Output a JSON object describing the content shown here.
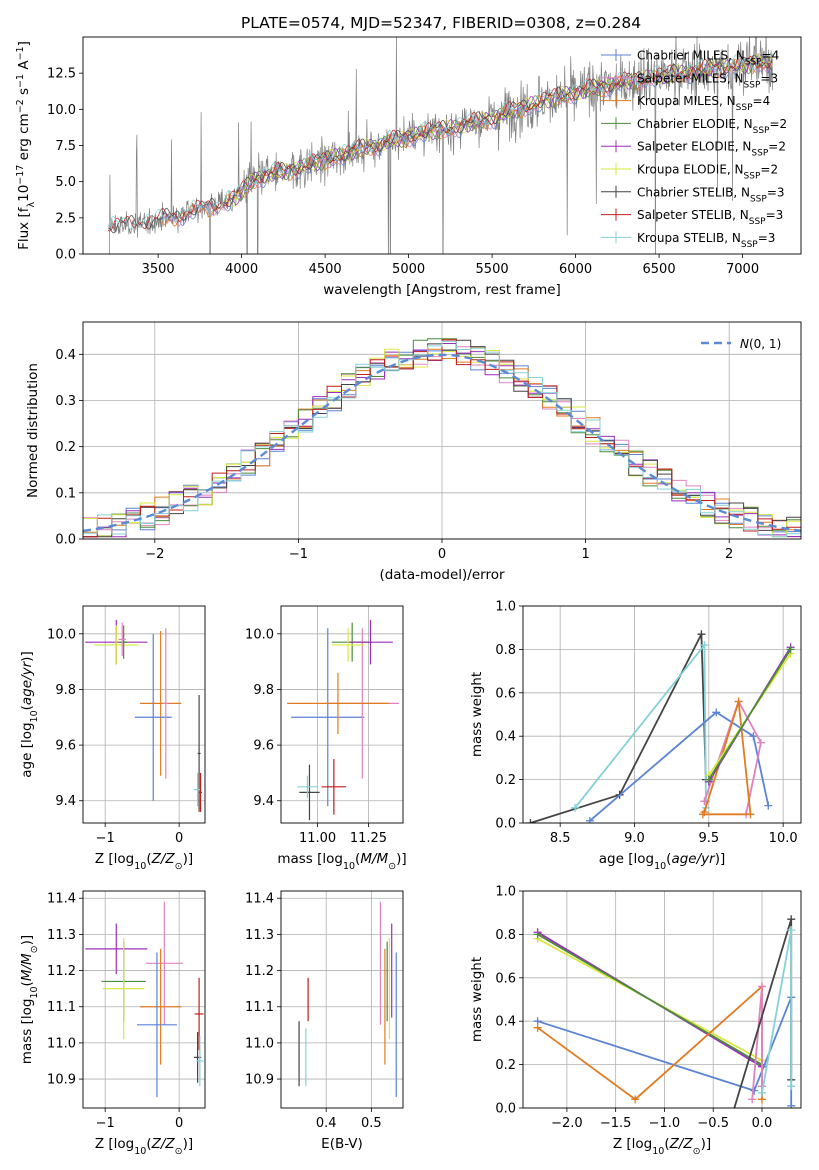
{
  "figure": {
    "title": "PLATE=0574, MJD=52347, FIBERID=0308, z=0.284"
  },
  "colors": {
    "chabrier_miles": "#5b83d6",
    "salpeter_miles": "#e082c0",
    "kroupa_miles": "#e07b20",
    "chabrier_elodie": "#4b8c3c",
    "salpeter_elodie": "#9b2fbd",
    "kroupa_elodie": "#d9e840",
    "chabrier_stelib": "#444444",
    "salpeter_stelib": "#c01c1c",
    "kroupa_stelib": "#84d2d8",
    "data": "#808080"
  },
  "chart_data": [
    {
      "id": "spectrum",
      "type": "line",
      "title": "PLATE=0574, MJD=52347, FIBERID=0308, z=0.284",
      "xlabel": "wavelength [Angstrom, rest frame]",
      "ylabel": "Flux [f_λ 10^-17 erg cm^-2 s^-1 A^-1]",
      "xlim": [
        3050,
        7350
      ],
      "ylim": [
        0,
        15
      ],
      "xticks": [
        3500,
        4000,
        4500,
        5000,
        5500,
        6000,
        6500,
        7000
      ],
      "yticks": [
        0.0,
        2.5,
        5.0,
        7.5,
        10.0,
        12.5
      ],
      "legend_position": "upper right",
      "legend": [
        {
          "label": "Chabrier MILES, N",
          "sub": "SSP",
          "tail": "=4",
          "color_key": "chabrier_miles"
        },
        {
          "label": "Salpeter MILES, N",
          "sub": "SSP",
          "tail": "=3",
          "color_key": "salpeter_miles"
        },
        {
          "label": "Kroupa MILES, N",
          "sub": "SSP",
          "tail": "=4",
          "color_key": "kroupa_miles"
        },
        {
          "label": "Chabrier ELODIE, N",
          "sub": "SSP",
          "tail": "=2",
          "color_key": "chabrier_elodie"
        },
        {
          "label": "Salpeter ELODIE, N",
          "sub": "SSP",
          "tail": "=2",
          "color_key": "salpeter_elodie"
        },
        {
          "label": "Kroupa ELODIE, N",
          "sub": "SSP",
          "tail": "=2",
          "color_key": "kroupa_elodie"
        },
        {
          "label": "Chabrier STELIB, N",
          "sub": "SSP",
          "tail": "=3",
          "color_key": "chabrier_stelib"
        },
        {
          "label": "Salpeter STELIB, N",
          "sub": "SSP",
          "tail": "=3",
          "color_key": "salpeter_stelib"
        },
        {
          "label": "Kroupa STELIB, N",
          "sub": "SSP",
          "tail": "=3",
          "color_key": "kroupa_stelib"
        }
      ],
      "model_anchor": {
        "x": [
          3200,
          3400,
          3600,
          3800,
          3950,
          4100,
          4300,
          4500,
          4700,
          4900,
          5100,
          5300,
          5500,
          5700,
          5900,
          6100,
          6300,
          6500,
          6700,
          6900,
          7100
        ],
        "y": [
          1.8,
          2.1,
          2.6,
          3.2,
          3.8,
          5.3,
          5.8,
          6.5,
          7.2,
          7.8,
          8.4,
          8.8,
          9.4,
          10.2,
          10.9,
          11.4,
          11.9,
          12.3,
          12.6,
          12.9,
          13.2
        ]
      }
    },
    {
      "id": "residuals",
      "type": "step",
      "xlabel": "(data-model)/error",
      "ylabel": "Normed distribution",
      "xlim": [
        -2.5,
        2.5
      ],
      "ylim": [
        0,
        0.47
      ],
      "xticks": [
        -2,
        -1,
        0,
        1,
        2
      ],
      "yticks": [
        0.0,
        0.1,
        0.2,
        0.3,
        0.4
      ],
      "grid": true,
      "legend": [
        {
          "label": "N(0,1)",
          "style": "dashed",
          "color": "#5b8bd6"
        }
      ],
      "legend_position": "upper right",
      "bins": {
        "start": -2.5,
        "width": 0.1,
        "count": 50
      }
    },
    {
      "id": "age_vs_Z",
      "type": "errorbar",
      "xlabel": "Z [log10(Z/Z⊙)]",
      "ylabel": "age [log10(age/yr)]",
      "xlim": [
        -1.3,
        0.35
      ],
      "ylim": [
        9.32,
        10.1
      ],
      "xticks": [
        -1,
        0
      ],
      "yticks": [
        9.4,
        9.6,
        9.8,
        10.0
      ],
      "grid": true,
      "points": [
        {
          "key": "salpeter_elodie",
          "x": -0.85,
          "xerr": 0.42,
          "y": 9.97,
          "yerr": 0.08
        },
        {
          "key": "kroupa_elodie",
          "x": -0.85,
          "xerr": 0.3,
          "y": 9.96,
          "yerr": 0.07
        },
        {
          "key": "chabrier_elodie",
          "x": -0.75,
          "xerr": 0.05,
          "y": 9.97,
          "yerr": 0.06
        },
        {
          "key": "salpeter_miles",
          "x": -0.77,
          "xerr": 0.05,
          "y": 9.98,
          "yerr": 0.06
        },
        {
          "key": "kroupa_miles",
          "x": -0.25,
          "xerr": 0.28,
          "y": 9.75,
          "yerr": 0.26
        },
        {
          "key": "chabrier_miles",
          "x": -0.35,
          "xerr": 0.25,
          "y": 9.7,
          "yerr": 0.3
        },
        {
          "key": "salpeter_miles",
          "x": -0.18,
          "xerr": 0.04,
          "y": 9.75,
          "yerr": 0.27
        },
        {
          "key": "chabrier_stelib",
          "x": 0.27,
          "xerr": 0.02,
          "y": 9.57,
          "yerr": 0.21
        },
        {
          "key": "kroupa_stelib",
          "x": 0.25,
          "xerr": 0.05,
          "y": 9.44,
          "yerr": 0.06
        },
        {
          "key": "salpeter_stelib",
          "x": 0.29,
          "xerr": 0.02,
          "y": 9.43,
          "yerr": 0.07
        }
      ]
    },
    {
      "id": "age_vs_mass",
      "type": "errorbar",
      "xlabel": "mass [log10(M/M⊙)]",
      "ylabel": "",
      "xlim": [
        10.82,
        11.42
      ],
      "ylim": [
        9.32,
        10.1
      ],
      "xticks": [
        11.0,
        11.25
      ],
      "yticks": [
        9.4,
        9.6,
        9.8,
        10.0
      ],
      "grid": true,
      "points": [
        {
          "key": "chabrier_miles",
          "x": 11.05,
          "xerr": 0.18,
          "y": 9.7,
          "yerr": 0.32
        },
        {
          "key": "salpeter_miles",
          "x": 11.22,
          "xerr": 0.18,
          "y": 9.75,
          "yerr": 0.27
        },
        {
          "key": "kroupa_miles",
          "x": 11.1,
          "xerr": 0.25,
          "y": 9.75,
          "yerr": 0.11
        },
        {
          "key": "chabrier_elodie",
          "x": 11.17,
          "xerr": 0.1,
          "y": 9.97,
          "yerr": 0.07
        },
        {
          "key": "salpeter_elodie",
          "x": 11.26,
          "xerr": 0.11,
          "y": 9.97,
          "yerr": 0.08
        },
        {
          "key": "kroupa_elodie",
          "x": 11.15,
          "xerr": 0.08,
          "y": 9.96,
          "yerr": 0.06
        },
        {
          "key": "chabrier_stelib",
          "x": 10.96,
          "xerr": 0.05,
          "y": 9.43,
          "yerr": 0.1
        },
        {
          "key": "salpeter_stelib",
          "x": 11.08,
          "xerr": 0.06,
          "y": 9.45,
          "yerr": 0.1
        },
        {
          "key": "kroupa_stelib",
          "x": 10.95,
          "xerr": 0.05,
          "y": 9.45,
          "yerr": 0.04
        }
      ]
    },
    {
      "id": "massweight_vs_age",
      "type": "line",
      "xlabel": "age [log10(age/yr)]",
      "ylabel": "mass weight",
      "xlim": [
        8.25,
        10.12
      ],
      "ylim": [
        0.0,
        1.0
      ],
      "xticks": [
        8.5,
        9.0,
        9.5,
        10.0
      ],
      "yticks": [
        0.0,
        0.2,
        0.4,
        0.6,
        0.8,
        1.0
      ],
      "grid": true,
      "series": [
        {
          "key": "chabrier_stelib",
          "x": [
            8.3,
            8.9,
            9.45,
            9.48
          ],
          "y": [
            0.0,
            0.13,
            0.87,
            0.2
          ]
        },
        {
          "key": "kroupa_stelib",
          "x": [
            8.6,
            9.47,
            9.48,
            9.48
          ],
          "y": [
            0.07,
            0.82,
            0.1,
            0.07
          ]
        },
        {
          "key": "chabrier_miles",
          "x": [
            8.7,
            9.55,
            9.8,
            9.9
          ],
          "y": [
            0.01,
            0.51,
            0.4,
            0.08
          ]
        },
        {
          "key": "salpeter_miles",
          "x": [
            9.47,
            9.7,
            9.85,
            9.75
          ],
          "y": [
            0.1,
            0.56,
            0.37,
            0.04
          ]
        },
        {
          "key": "kroupa_miles",
          "x": [
            9.47,
            9.7,
            9.78,
            9.46
          ],
          "y": [
            0.05,
            0.56,
            0.04,
            0.04
          ]
        },
        {
          "key": "salpeter_elodie",
          "x": [
            9.5,
            10.05
          ],
          "y": [
            0.19,
            0.81
          ]
        },
        {
          "key": "kroupa_elodie",
          "x": [
            9.5,
            10.05
          ],
          "y": [
            0.22,
            0.78
          ]
        },
        {
          "key": "chabrier_elodie",
          "x": [
            9.5,
            10.05
          ],
          "y": [
            0.2,
            0.8
          ]
        }
      ]
    },
    {
      "id": "mass_vs_Z",
      "type": "errorbar",
      "xlabel": "Z [log10(Z/Z⊙)]",
      "ylabel": "mass [log10(M/M⊙)]",
      "xlim": [
        -1.3,
        0.35
      ],
      "ylim": [
        10.82,
        11.42
      ],
      "xticks": [
        -1,
        0
      ],
      "yticks": [
        10.9,
        11.0,
        11.1,
        11.2,
        11.3,
        11.4
      ],
      "grid": true,
      "points": [
        {
          "key": "salpeter_elodie",
          "x": -0.85,
          "xerr": 0.42,
          "y": 11.26,
          "yerr": 0.07
        },
        {
          "key": "chabrier_elodie",
          "x": -0.75,
          "xerr": 0.3,
          "y": 11.17,
          "yerr": 0.11
        },
        {
          "key": "kroupa_elodie",
          "x": -0.75,
          "xerr": 0.28,
          "y": 11.15,
          "yerr": 0.14
        },
        {
          "key": "salpeter_miles",
          "x": -0.2,
          "xerr": 0.25,
          "y": 11.22,
          "yerr": 0.17
        },
        {
          "key": "kroupa_miles",
          "x": -0.25,
          "xerr": 0.28,
          "y": 11.1,
          "yerr": 0.16
        },
        {
          "key": "chabrier_miles",
          "x": -0.3,
          "xerr": 0.27,
          "y": 11.05,
          "yerr": 0.2
        },
        {
          "key": "salpeter_stelib",
          "x": 0.27,
          "xerr": 0.06,
          "y": 11.08,
          "yerr": 0.1
        },
        {
          "key": "chabrier_stelib",
          "x": 0.25,
          "xerr": 0.05,
          "y": 10.96,
          "yerr": 0.07
        },
        {
          "key": "kroupa_stelib",
          "x": 0.28,
          "xerr": 0.05,
          "y": 10.95,
          "yerr": 0.07
        }
      ]
    },
    {
      "id": "mass_vs_ebv",
      "type": "errorbar",
      "xlabel": "E(B-V)",
      "ylabel": "",
      "xlim": [
        0.3,
        0.57
      ],
      "ylim": [
        10.82,
        11.42
      ],
      "xticks": [
        0.4,
        0.5
      ],
      "yticks": [
        10.9,
        11.0,
        11.1,
        11.2,
        11.3,
        11.4
      ],
      "grid": true,
      "points": [
        {
          "key": "chabrier_stelib",
          "x": 0.34,
          "xerr": 0.0,
          "y": 10.97,
          "yerr": 0.09
        },
        {
          "key": "kroupa_stelib",
          "x": 0.355,
          "xerr": 0.0,
          "y": 10.96,
          "yerr": 0.08
        },
        {
          "key": "salpeter_stelib",
          "x": 0.36,
          "xerr": 0.0,
          "y": 11.12,
          "yerr": 0.06
        },
        {
          "key": "salpeter_miles",
          "x": 0.52,
          "xerr": 0.0,
          "y": 11.22,
          "yerr": 0.17
        },
        {
          "key": "kroupa_miles",
          "x": 0.53,
          "xerr": 0.0,
          "y": 11.1,
          "yerr": 0.16
        },
        {
          "key": "chabrier_elodie",
          "x": 0.535,
          "xerr": 0.0,
          "y": 11.17,
          "yerr": 0.11
        },
        {
          "key": "kroupa_elodie",
          "x": 0.54,
          "xerr": 0.0,
          "y": 11.15,
          "yerr": 0.14
        },
        {
          "key": "salpeter_elodie",
          "x": 0.545,
          "xerr": 0.0,
          "y": 11.2,
          "yerr": 0.13
        },
        {
          "key": "chabrier_miles",
          "x": 0.555,
          "xerr": 0.0,
          "y": 11.05,
          "yerr": 0.2
        }
      ]
    },
    {
      "id": "massweight_vs_Z",
      "type": "line",
      "xlabel": "Z [log10(Z/Z⊙)]",
      "ylabel": "mass weight",
      "xlim": [
        -2.45,
        0.4
      ],
      "ylim": [
        0.0,
        1.0
      ],
      "xticks": [
        -2.0,
        -1.5,
        -1.0,
        -0.5,
        0.0
      ],
      "yticks": [
        0.0,
        0.2,
        0.4,
        0.6,
        0.8,
        1.0
      ],
      "grid": true,
      "series": [
        {
          "key": "salpeter_elodie",
          "x": [
            -2.3,
            0.0
          ],
          "y": [
            0.81,
            0.19
          ]
        },
        {
          "key": "kroupa_elodie",
          "x": [
            -2.3,
            0.0
          ],
          "y": [
            0.78,
            0.22
          ]
        },
        {
          "key": "chabrier_elodie",
          "x": [
            -2.3,
            0.0
          ],
          "y": [
            0.8,
            0.2
          ]
        },
        {
          "key": "chabrier_miles",
          "x": [
            -2.3,
            -0.08,
            0.3,
            0.3
          ],
          "y": [
            0.4,
            0.08,
            0.51,
            0.01
          ]
        },
        {
          "key": "kroupa_miles",
          "x": [
            -2.3,
            -1.3,
            0.0,
            0.0
          ],
          "y": [
            0.37,
            0.04,
            0.56,
            0.04
          ]
        },
        {
          "key": "salpeter_miles",
          "x": [
            -0.1,
            0.0,
            0.0
          ],
          "y": [
            0.04,
            0.56,
            0.1
          ]
        },
        {
          "key": "chabrier_stelib",
          "x": [
            -0.35,
            0.3,
            0.3
          ],
          "y": [
            -0.1,
            0.87,
            0.13
          ]
        },
        {
          "key": "kroupa_stelib",
          "x": [
            0.0,
            0.3,
            0.3
          ],
          "y": [
            0.07,
            0.82,
            0.1
          ]
        }
      ]
    }
  ]
}
